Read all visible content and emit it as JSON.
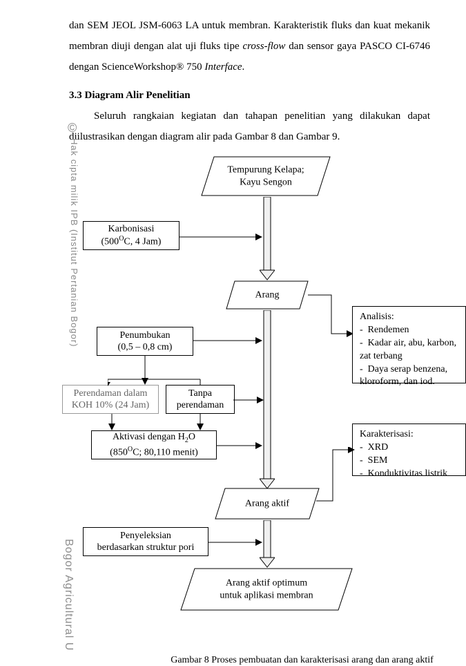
{
  "paragraph": {
    "line1_prefix": "dan SEM JEOL JSM-6063 LA untuk membran. Karakteristik fluks dan kuat mekanik membran diuji dengan alat uji fluks tipe ",
    "line1_italic": "cross-flow",
    "line1_mid": " dan sensor gaya PASCO CI-6746 dengan ScienceWorkshop® 750 ",
    "line1_italic2": "Interface",
    "line1_end": "."
  },
  "section": {
    "number_title": "3.3  Diagram Alir Penelitian",
    "body": "Seluruh rangkaian kegiatan dan tahapan penelitian yang dilakukan dapat diilustrasikan dengan diagram alir pada Gambar 8 dan Gambar 9."
  },
  "watermarks": {
    "c": "©",
    "v1": "Hak cipta milik IPB (Institut Pertanian Bogor)",
    "v2": "Bogor Agricultural U"
  },
  "flow": {
    "start": "Tempurung Kelapa;\nKayu Sengon",
    "karbonisasi_l1": "Karbonisasi",
    "karbonisasi_l2_a": "(500",
    "karbonisasi_l2_sup": "O",
    "karbonisasi_l2_b": "C, 4 Jam)",
    "arang": "Arang",
    "penumbukan": "Penumbukan\n(0,5 – 0,8 cm)",
    "perendaman": "Perendaman dalam\nKOH 10% (24 Jam)",
    "tanpa": "Tanpa\nperendaman",
    "aktivasi_l1_a": "Aktivasi dengan H",
    "aktivasi_l1_sub": "2",
    "aktivasi_l1_b": "O",
    "aktivasi_l2_a": "(850",
    "aktivasi_l2_sup": "O",
    "aktivasi_l2_b": "C; 80,110 menit)",
    "arang_aktif": "Arang aktif",
    "penyeleksian": "Penyeleksian\nberdasarkan struktur pori",
    "optimum": "Arang aktif optimum\nuntuk aplikasi membran",
    "analisis_title": "Analisis:",
    "analisis_items": [
      "Rendemen",
      "Kadar air, abu, karbon, zat terbang",
      "Daya serap benzena, kloroform, dan iod."
    ],
    "karakterisasi_title": "Karakterisasi:",
    "karakterisasi_items": [
      "XRD",
      "SEM",
      "Konduktivitas listrik"
    ]
  },
  "caption": "Gambar 8  Proses pembuatan dan karakterisasi arang dan arang aktif",
  "style": {
    "page_bg": "#ffffff",
    "text_color": "#000000",
    "watermark_color": "#8a8a8a",
    "gray_border": "#999999",
    "font_family": "Times New Roman",
    "font_size_body": 15,
    "font_size_box": 14
  }
}
